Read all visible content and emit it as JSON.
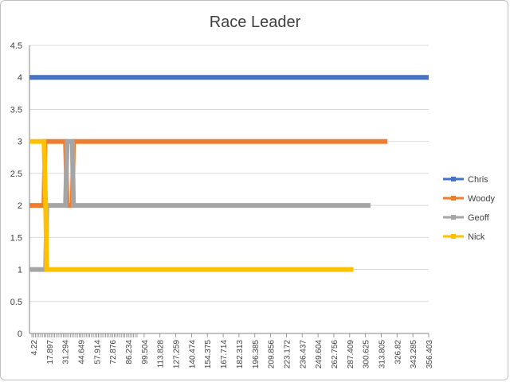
{
  "chart_data": {
    "type": "line",
    "title": "Race Leader",
    "xlabel": "",
    "ylabel": "",
    "ylim": [
      0,
      4.5
    ],
    "yticks": [
      "0",
      "0.5",
      "1",
      "1.5",
      "2",
      "2.5",
      "3",
      "3.5",
      "4",
      "4.5"
    ],
    "xlim": [
      4.22,
      356.403
    ],
    "xtick_labels": [
      "4.22",
      "17.897",
      "31.294",
      "44.649",
      "57.914",
      "72.876",
      "86.234",
      "99.504",
      "113.828",
      "127.259",
      "140.474",
      "154.375",
      "167.714",
      "182.313",
      "196.385",
      "209.856",
      "223.172",
      "236.437",
      "249.604",
      "262.756",
      "287.409",
      "300.625",
      "313.805",
      "326.82",
      "343.285",
      "356.403"
    ],
    "grid": true,
    "legend_position": "right",
    "series": [
      {
        "name": "Chris",
        "color": "#4472C4",
        "x": [
          4.22,
          356.403
        ],
        "y": [
          4,
          4
        ]
      },
      {
        "name": "Woody",
        "color": "#ED7D31",
        "x": [
          4.22,
          17.0,
          17.897,
          36.0,
          37.5,
          42.0,
          43.0,
          320.0
        ],
        "y": [
          2,
          2,
          3,
          3,
          2,
          2,
          3,
          3
        ]
      },
      {
        "name": "Geoff",
        "color": "#A5A5A5",
        "x": [
          4.22,
          18.5,
          19.5,
          36.0,
          37.5,
          42.0,
          43.0,
          305.0
        ],
        "y": [
          1,
          1,
          2,
          2,
          3,
          3,
          2,
          2
        ]
      },
      {
        "name": "Nick",
        "color": "#FFC000",
        "x": [
          4.22,
          17.0,
          18.5,
          19.5,
          290.0
        ],
        "y": [
          3,
          3,
          2,
          1,
          1
        ]
      }
    ]
  }
}
